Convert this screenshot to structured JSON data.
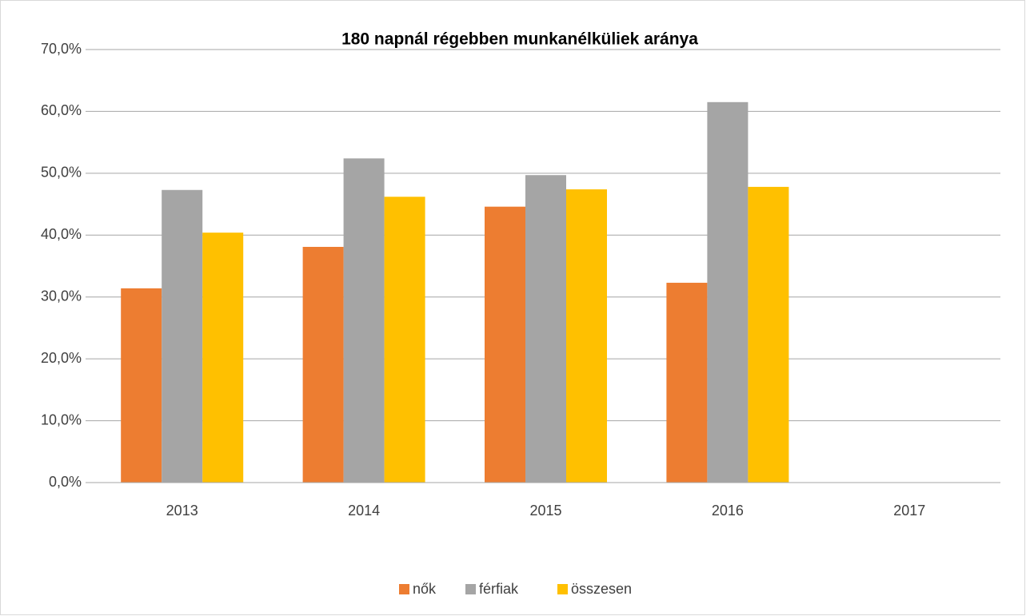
{
  "chart_data": {
    "type": "bar",
    "title": "180 napnál régebben munkanélküliek aránya",
    "categories": [
      "2013",
      "2014",
      "2015",
      "2016",
      "2017"
    ],
    "series": [
      {
        "name": "nők",
        "color": "#ed7d31",
        "values": [
          31.4,
          38.1,
          44.6,
          32.3,
          null
        ]
      },
      {
        "name": "férfiak",
        "color": "#a5a5a5",
        "values": [
          47.3,
          52.4,
          49.7,
          61.5,
          null
        ]
      },
      {
        "name": "összesen",
        "color": "#ffc000",
        "values": [
          40.4,
          46.2,
          47.4,
          47.8,
          null
        ]
      }
    ],
    "ylim": [
      0,
      70
    ],
    "yticks": [
      {
        "value": 0,
        "label": "0,0%"
      },
      {
        "value": 10,
        "label": "10,0%"
      },
      {
        "value": 20,
        "label": "20,0%"
      },
      {
        "value": 30,
        "label": "30,0%"
      },
      {
        "value": 40,
        "label": "40,0%"
      },
      {
        "value": 50,
        "label": "50,0%"
      },
      {
        "value": 60,
        "label": "60,0%"
      },
      {
        "value": 70,
        "label": "70,0%"
      }
    ],
    "grid": true,
    "legend": "bottom"
  }
}
